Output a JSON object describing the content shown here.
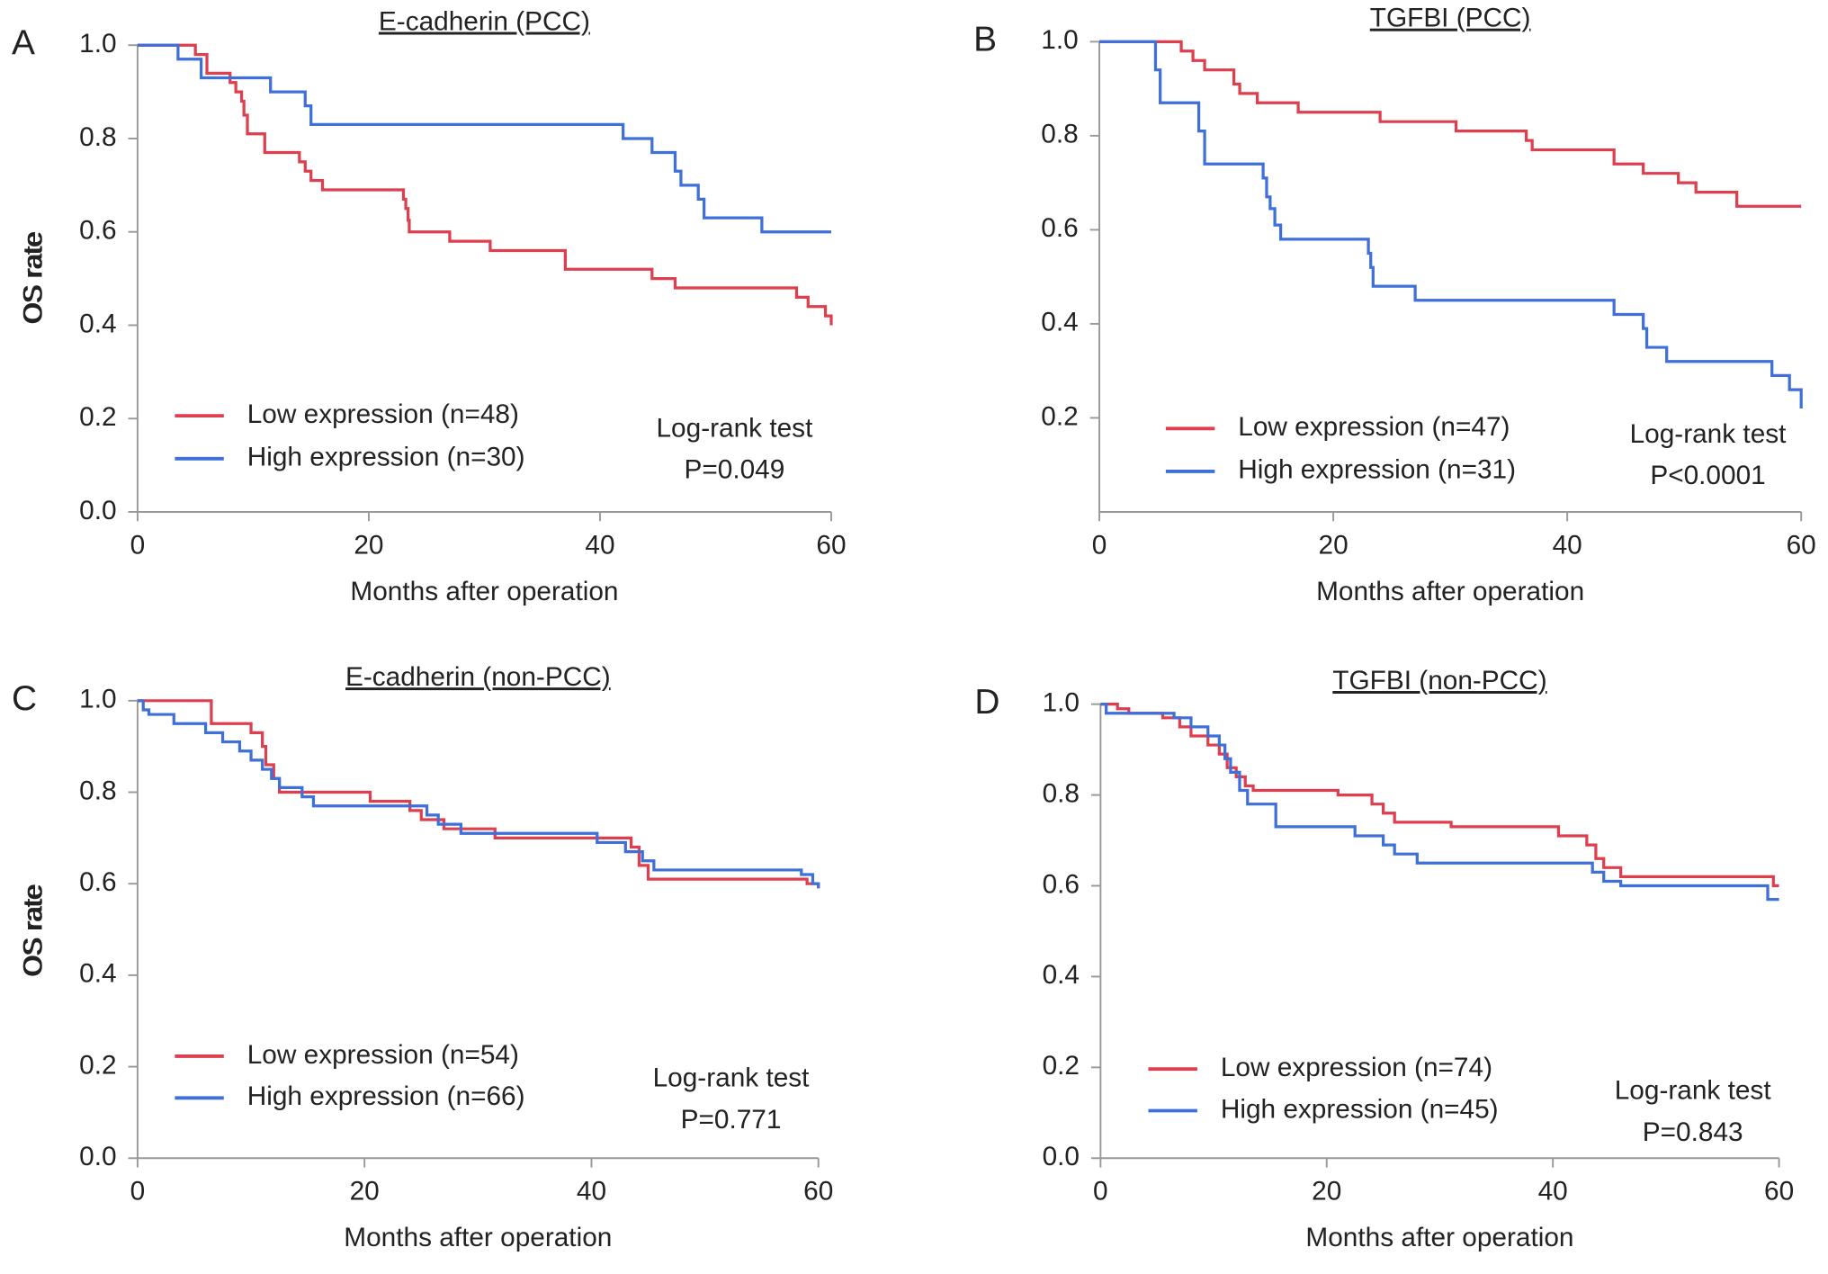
{
  "chart_data": [
    {
      "type": "step",
      "panel": "A",
      "title": "E-cadherin (PCC)",
      "xlabel": "Months after operation",
      "ylabel": "OS rate",
      "xlim": [
        0,
        60
      ],
      "ylim": [
        0,
        1
      ],
      "xticks": [
        0,
        20,
        40,
        60
      ],
      "yticks": [
        {
          "value": 0,
          "label": "0.0"
        },
        0.2,
        0.4,
        0.6,
        0.8,
        {
          "value": 1,
          "label": "1.0"
        }
      ],
      "annotations": [
        "Log-rank test",
        "P=0.049"
      ],
      "series": [
        {
          "name": "Low expression (n=48)",
          "color": "#dd3f4e",
          "x": [
            0,
            5,
            6,
            8,
            8.5,
            9,
            9.2,
            9.5,
            11,
            14,
            14.5,
            15,
            16,
            23,
            23.2,
            23.4,
            23.5,
            27,
            30.5,
            37,
            44.5,
            46.5,
            57,
            58,
            59.5,
            60
          ],
          "values": [
            1.0,
            0.98,
            0.94,
            0.92,
            0.9,
            0.88,
            0.85,
            0.81,
            0.77,
            0.75,
            0.73,
            0.71,
            0.69,
            0.67,
            0.65,
            0.625,
            0.6,
            0.58,
            0.56,
            0.52,
            0.5,
            0.48,
            0.46,
            0.44,
            0.42,
            0.4
          ]
        },
        {
          "name": "High expression (n=30)",
          "color": "#3f6fd8",
          "x": [
            0,
            3.5,
            5.5,
            11.5,
            14.5,
            15,
            42,
            44.5,
            46.5,
            47,
            48.5,
            49,
            54,
            60
          ],
          "values": [
            1.0,
            0.97,
            0.93,
            0.9,
            0.87,
            0.83,
            0.8,
            0.77,
            0.73,
            0.7,
            0.67,
            0.63,
            0.6,
            0.6
          ]
        }
      ]
    },
    {
      "type": "step",
      "panel": "B",
      "title": "TGFBI (PCC)",
      "xlabel": "Months after operation",
      "ylabel": "OS rate",
      "xlim": [
        0,
        60
      ],
      "ylim": [
        0,
        1
      ],
      "xticks": [
        0,
        20,
        40,
        60
      ],
      "yticks": [
        0.2,
        0.4,
        0.6,
        0.8,
        {
          "value": 1,
          "label": "1.0"
        }
      ],
      "annotations": [
        "Log-rank test",
        "P<0.0001"
      ],
      "series": [
        {
          "name": "Low expression (n=47)",
          "color": "#dd3f4e",
          "x": [
            0,
            7,
            8,
            9,
            11.5,
            12,
            13.5,
            17,
            24,
            30.5,
            36.5,
            37,
            44,
            46.5,
            49.5,
            51,
            54.5,
            60
          ],
          "values": [
            1.0,
            0.98,
            0.96,
            0.94,
            0.91,
            0.89,
            0.87,
            0.85,
            0.83,
            0.81,
            0.79,
            0.77,
            0.74,
            0.72,
            0.7,
            0.68,
            0.65,
            0.65
          ]
        },
        {
          "name": "High expression (n=31)",
          "color": "#3f6fd8",
          "x": [
            0,
            4.8,
            5.2,
            8.5,
            9,
            14,
            14.3,
            14.6,
            15,
            15.5,
            23,
            23.2,
            23.4,
            27,
            44,
            46.5,
            46.8,
            48.5,
            57.5,
            59,
            60
          ],
          "values": [
            1.0,
            0.94,
            0.87,
            0.81,
            0.74,
            0.71,
            0.67,
            0.645,
            0.61,
            0.58,
            0.55,
            0.52,
            0.48,
            0.45,
            0.42,
            0.39,
            0.35,
            0.32,
            0.29,
            0.26,
            0.22
          ]
        }
      ]
    },
    {
      "type": "step",
      "panel": "C",
      "title": "E-cadherin (non-PCC)",
      "xlabel": "Months after operation",
      "ylabel": "OS rate",
      "xlim": [
        0,
        60
      ],
      "ylim": [
        0,
        1
      ],
      "xticks": [
        0,
        20,
        40,
        60
      ],
      "yticks": [
        {
          "value": 0,
          "label": "0.0"
        },
        0.2,
        0.4,
        0.6,
        0.8,
        {
          "value": 1,
          "label": "1.0"
        }
      ],
      "annotations": [
        "Log-rank test",
        "P=0.771"
      ],
      "series": [
        {
          "name": "Low expression (n=54)",
          "color": "#dd3f4e",
          "x": [
            0,
            6.5,
            10,
            11,
            11.3,
            12,
            12.5,
            20.5,
            24,
            25,
            27,
            31.5,
            43.5,
            44.2,
            45,
            59,
            60
          ],
          "values": [
            1.0,
            0.95,
            0.93,
            0.9,
            0.86,
            0.83,
            0.8,
            0.78,
            0.76,
            0.74,
            0.72,
            0.7,
            0.68,
            0.64,
            0.61,
            0.6,
            0.59
          ]
        },
        {
          "name": "High expression (n=66)",
          "color": "#3f6fd8",
          "x": [
            0,
            0.5,
            1,
            3.2,
            6,
            7.5,
            9,
            10,
            11,
            11.8,
            12.5,
            14.5,
            15.5,
            25,
            25.5,
            26.5,
            28.5,
            40.5,
            43,
            44.5,
            45.5,
            58.5,
            59.5,
            60
          ],
          "values": [
            1.0,
            0.98,
            0.97,
            0.95,
            0.93,
            0.91,
            0.89,
            0.87,
            0.85,
            0.83,
            0.81,
            0.79,
            0.77,
            0.77,
            0.75,
            0.73,
            0.71,
            0.69,
            0.67,
            0.65,
            0.63,
            0.62,
            0.6,
            0.59
          ]
        }
      ]
    },
    {
      "type": "step",
      "panel": "D",
      "title": "TGFBI (non-PCC)",
      "xlabel": "Months after operation",
      "ylabel": "OS rate",
      "xlim": [
        0,
        60
      ],
      "ylim": [
        0,
        1
      ],
      "xticks": [
        0,
        20,
        40,
        60
      ],
      "yticks": [
        {
          "value": 0,
          "label": "0.0"
        },
        0.2,
        0.4,
        0.6,
        0.8,
        {
          "value": 1,
          "label": "1.0"
        }
      ],
      "annotations": [
        "Log-rank test",
        "P=0.843"
      ],
      "series": [
        {
          "name": "Low expression (n=74)",
          "color": "#dd3f4e",
          "x": [
            0,
            1.5,
            2.5,
            5.5,
            7,
            8,
            9.5,
            10.5,
            11.2,
            12,
            12.8,
            13.5,
            21,
            24,
            25,
            26,
            31,
            40.5,
            43,
            43.8,
            44.5,
            46,
            59.5,
            60
          ],
          "values": [
            1.0,
            0.99,
            0.98,
            0.97,
            0.95,
            0.93,
            0.91,
            0.89,
            0.86,
            0.84,
            0.82,
            0.81,
            0.8,
            0.78,
            0.76,
            0.74,
            0.73,
            0.71,
            0.69,
            0.66,
            0.64,
            0.62,
            0.6,
            0.6
          ]
        },
        {
          "name": "High expression (n=45)",
          "color": "#3f6fd8",
          "x": [
            0,
            0.5,
            6.5,
            8,
            9.5,
            10.5,
            11,
            11.5,
            12.3,
            13,
            15.5,
            22.5,
            25,
            26,
            28,
            43.5,
            44.5,
            46,
            59,
            60
          ],
          "values": [
            1.0,
            0.98,
            0.97,
            0.95,
            0.93,
            0.91,
            0.88,
            0.85,
            0.81,
            0.78,
            0.73,
            0.71,
            0.69,
            0.67,
            0.65,
            0.63,
            0.61,
            0.6,
            0.57,
            0.57
          ]
        }
      ]
    }
  ]
}
